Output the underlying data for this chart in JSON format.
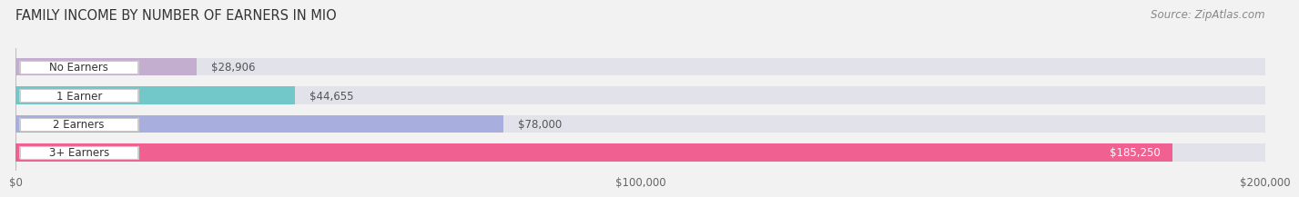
{
  "title": "FAMILY INCOME BY NUMBER OF EARNERS IN MIO",
  "source": "Source: ZipAtlas.com",
  "categories": [
    "No Earners",
    "1 Earner",
    "2 Earners",
    "3+ Earners"
  ],
  "values": [
    28906,
    44655,
    78000,
    185250
  ],
  "bar_colors": [
    "#c4aed0",
    "#72c8c8",
    "#a8aedd",
    "#f06090"
  ],
  "value_labels": [
    "$28,906",
    "$44,655",
    "$78,000",
    "$185,250"
  ],
  "xlim": [
    0,
    200000
  ],
  "xticks": [
    0,
    100000,
    200000
  ],
  "xtick_labels": [
    "$0",
    "$100,000",
    "$200,000"
  ],
  "background_color": "#f2f2f2",
  "bar_bg_color": "#e2e2ea",
  "title_fontsize": 10.5,
  "source_fontsize": 8.5,
  "bar_label_fontsize": 8.5,
  "value_fontsize": 8.5,
  "tick_fontsize": 8.5
}
